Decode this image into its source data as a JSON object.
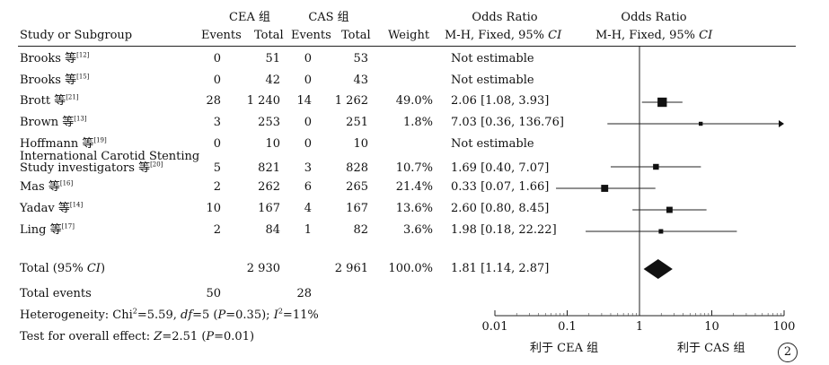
{
  "header": {
    "group_cea": "CEA 组",
    "group_cas": "CAS 组",
    "col_study": "Study or Subgroup",
    "col_events_cea": "Events",
    "col_total_cea": "Total",
    "col_events_cas": "Events",
    "col_total_cas": "Total",
    "col_weight": "Weight",
    "col_or_title": "Odds Ratio",
    "col_or_method": "M-H, Fixed, 95% ",
    "col_or_ci": "CI",
    "plot_or_title": "Odds Ratio",
    "plot_or_method": "M-H, Fixed, 95% ",
    "plot_or_ci": "CI"
  },
  "studies": [
    {
      "name": "Brooks 等",
      "ref": "[12]",
      "events_cea": "0",
      "total_cea": "51",
      "events_cas": "0",
      "total_cas": "53",
      "weight": "",
      "or_text": "Not estimable"
    },
    {
      "name": "Brooks 等",
      "ref": "[15]",
      "events_cea": "0",
      "total_cea": "42",
      "events_cas": "0",
      "total_cas": "43",
      "weight": "",
      "or_text": "Not estimable"
    },
    {
      "name": "Brott 等",
      "ref": "[21]",
      "events_cea": "28",
      "total_cea": "1 240",
      "events_cas": "14",
      "total_cas": "1 262",
      "weight": "49.0%",
      "or_text": "2.06 [1.08, 3.93]"
    },
    {
      "name": "Brown 等",
      "ref": "[13]",
      "events_cea": "3",
      "total_cea": "253",
      "events_cas": "0",
      "total_cas": "251",
      "weight": "1.8%",
      "or_text": "7.03 [0.36, 136.76]"
    },
    {
      "name": "Hoffmann 等",
      "ref": "[19]",
      "events_cea": "0",
      "total_cea": "10",
      "events_cas": "0",
      "total_cas": "10",
      "weight": "",
      "or_text": "Not estimable"
    },
    {
      "name_line1": "International Carotid Stenting",
      "name": "Study investigators 等",
      "ref": "[20]",
      "events_cea": "5",
      "total_cea": "821",
      "events_cas": "3",
      "total_cas": "828",
      "weight": "10.7%",
      "or_text": "1.69 [0.40, 7.07]"
    },
    {
      "name": "Mas 等",
      "ref": "[16]",
      "events_cea": "2",
      "total_cea": "262",
      "events_cas": "6",
      "total_cas": "265",
      "weight": "21.4%",
      "or_text": "0.33 [0.07, 1.66]"
    },
    {
      "name": "Yadav 等",
      "ref": "[14]",
      "events_cea": "10",
      "total_cea": "167",
      "events_cas": "4",
      "total_cas": "167",
      "weight": "13.6%",
      "or_text": "2.60 [0.80, 8.45]"
    },
    {
      "name": "Ling 等",
      "ref": "[17]",
      "events_cea": "2",
      "total_cea": "84",
      "events_cas": "1",
      "total_cas": "82",
      "weight": "3.6%",
      "or_text": "1.98 [0.18, 22.22]"
    }
  ],
  "total": {
    "label_pre": "Total (95% ",
    "label_ci": "CI",
    "label_post": ")",
    "total_cea": "2 930",
    "total_cas": "2 961",
    "weight": "100.0%",
    "or_text": "1.81 [1.14, 2.87]"
  },
  "total_events": {
    "label": "Total events",
    "cea": "50",
    "cas": "28"
  },
  "heterogeneity": {
    "p1": "Heterogeneity: Chi",
    "sup2a": "2",
    "p2": "=5.59, ",
    "df": "df",
    "p3": "=5 (",
    "P": "P",
    "p4": "=0.35); ",
    "I": "I",
    "sup2b": "2",
    "p5": "=11%"
  },
  "overall_test": {
    "p1": "Test for overall effect: ",
    "Z": "Z",
    "p2": "=2.51 (",
    "P": "P",
    "p3": "=0.01)"
  },
  "axis": {
    "ticks": [
      "0.01",
      "0.1",
      "1",
      "10",
      "100"
    ],
    "favours_left": "利于 CEA 组",
    "favours_right": "利于 CAS 组"
  },
  "figure_label": "2",
  "chart_data": {
    "type": "forest",
    "x_scale": "log",
    "xlim": [
      0.01,
      100
    ],
    "reference_line": 1,
    "ticks": [
      0.01,
      0.1,
      1,
      10,
      100
    ],
    "measure": "Odds Ratio (M-H, Fixed, 95% CI)",
    "studies": [
      {
        "study": "Brooks [12]",
        "or": null,
        "lo": null,
        "hi": null,
        "weight": null
      },
      {
        "study": "Brooks [15]",
        "or": null,
        "lo": null,
        "hi": null,
        "weight": null
      },
      {
        "study": "Brott [21]",
        "or": 2.06,
        "lo": 1.08,
        "hi": 3.93,
        "weight": 49.0
      },
      {
        "study": "Brown [13]",
        "or": 7.03,
        "lo": 0.36,
        "hi": 136.76,
        "weight": 1.8
      },
      {
        "study": "Hoffmann [19]",
        "or": null,
        "lo": null,
        "hi": null,
        "weight": null
      },
      {
        "study": "International Carotid Stenting Study investigators [20]",
        "or": 1.69,
        "lo": 0.4,
        "hi": 7.07,
        "weight": 10.7
      },
      {
        "study": "Mas [16]",
        "or": 0.33,
        "lo": 0.07,
        "hi": 1.66,
        "weight": 21.4
      },
      {
        "study": "Yadav [14]",
        "or": 2.6,
        "lo": 0.8,
        "hi": 8.45,
        "weight": 13.6
      },
      {
        "study": "Ling [17]",
        "or": 1.98,
        "lo": 0.18,
        "hi": 22.22,
        "weight": 3.6
      }
    ],
    "pooled": {
      "or": 1.81,
      "lo": 1.14,
      "hi": 2.87,
      "weight": 100.0
    }
  }
}
